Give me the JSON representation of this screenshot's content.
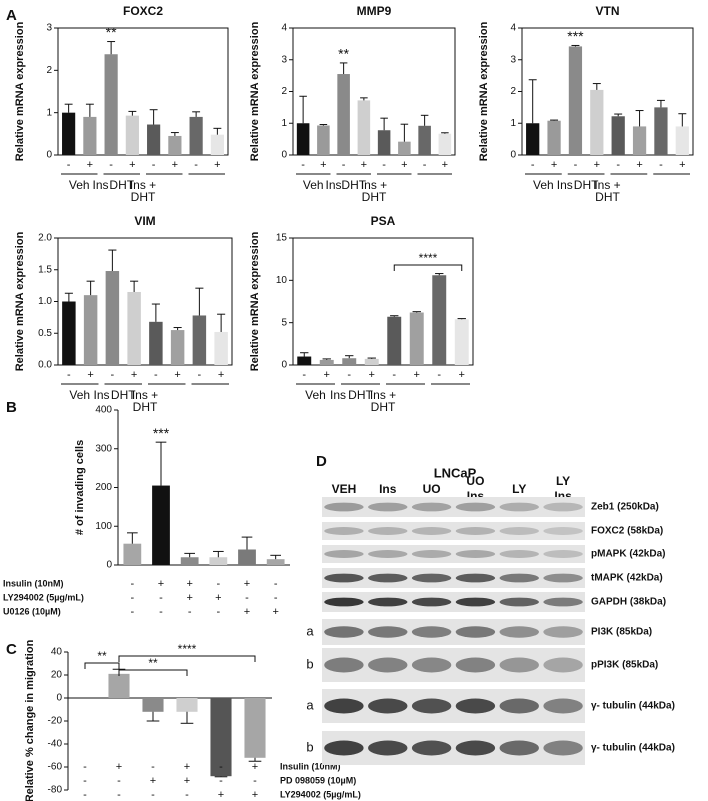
{
  "panel_labels": [
    "A",
    "B",
    "C",
    "D"
  ],
  "chart_data": [
    {
      "type": "bar",
      "title": "FOXC2",
      "ylabel": "Relative mRNA expression",
      "categories": [
        "-",
        "+",
        "-",
        "+",
        "-",
        "+",
        "-",
        "+"
      ],
      "groups": [
        [
          "Veh"
        ],
        [
          "Ins"
        ],
        [
          "DHT"
        ],
        [
          "Ins +",
          "DHT"
        ]
      ],
      "values": [
        1.0,
        0.9,
        2.38,
        0.93,
        0.72,
        0.45,
        0.9,
        0.48
      ],
      "errors": [
        0.2,
        0.3,
        0.3,
        0.1,
        0.35,
        0.08,
        0.12,
        0.15
      ],
      "colors": [
        "#111111",
        "#9a9a9a",
        "#8a8a8a",
        "#cfcfcf",
        "#5a5a5a",
        "#a0a0a0",
        "#686868",
        "#e6e6e6"
      ],
      "ylim": [
        0,
        3
      ],
      "yticks": [
        0,
        1,
        2,
        3
      ],
      "annotations": [
        "**"
      ]
    },
    {
      "type": "bar",
      "title": "MMP9",
      "ylabel": "Relative mRNA expression",
      "categories": [
        "-",
        "+",
        "-",
        "+",
        "-",
        "+",
        "-",
        "+"
      ],
      "groups": [
        [
          "Veh"
        ],
        [
          "Ins"
        ],
        [
          "DHT"
        ],
        [
          "Ins +",
          "DHT"
        ]
      ],
      "values": [
        1.0,
        0.93,
        2.55,
        1.72,
        0.78,
        0.42,
        0.92,
        0.67
      ],
      "errors": [
        0.85,
        0.03,
        0.35,
        0.08,
        0.38,
        0.55,
        0.33,
        0.03
      ],
      "colors": [
        "#111111",
        "#9a9a9a",
        "#8a8a8a",
        "#cfcfcf",
        "#5a5a5a",
        "#a0a0a0",
        "#686868",
        "#e6e6e6"
      ],
      "ylim": [
        0,
        4
      ],
      "yticks": [
        0,
        1,
        2,
        3,
        4
      ],
      "annotations": [
        "**"
      ]
    },
    {
      "type": "bar",
      "title": "VTN",
      "ylabel": "Relative mRNA expression",
      "categories": [
        "-",
        "+",
        "-",
        "+",
        "-",
        "+",
        "-",
        "+"
      ],
      "groups": [
        [
          "Veh"
        ],
        [
          "Ins"
        ],
        [
          "DHT"
        ],
        [
          "Ins +",
          "DHT"
        ]
      ],
      "values": [
        1.0,
        1.08,
        3.42,
        2.05,
        1.22,
        0.9,
        1.5,
        0.9
      ],
      "errors": [
        1.37,
        0.02,
        0.03,
        0.2,
        0.07,
        0.5,
        0.22,
        0.4
      ],
      "colors": [
        "#111111",
        "#9a9a9a",
        "#8a8a8a",
        "#cfcfcf",
        "#5a5a5a",
        "#a0a0a0",
        "#686868",
        "#e6e6e6"
      ],
      "ylim": [
        0,
        4
      ],
      "yticks": [
        0,
        1,
        2,
        3,
        4
      ],
      "annotations": [
        "***"
      ]
    },
    {
      "type": "bar",
      "title": "VIM",
      "ylabel": "Relative mRNA expression",
      "categories": [
        "-",
        "+",
        "-",
        "+",
        "-",
        "+",
        "-",
        "+"
      ],
      "groups": [
        [
          "Veh"
        ],
        [
          "Ins"
        ],
        [
          "DHT"
        ],
        [
          "Ins +",
          "DHT"
        ]
      ],
      "values": [
        1.0,
        1.1,
        1.48,
        1.15,
        0.68,
        0.55,
        0.78,
        0.52
      ],
      "errors": [
        0.13,
        0.22,
        0.33,
        0.17,
        0.28,
        0.04,
        0.43,
        0.28
      ],
      "colors": [
        "#111111",
        "#9a9a9a",
        "#8a8a8a",
        "#cfcfcf",
        "#5a5a5a",
        "#a0a0a0",
        "#686868",
        "#e6e6e6"
      ],
      "ylim": [
        0,
        2
      ],
      "yticks": [
        {
          "value": 0,
          "label": "0.0"
        },
        0.5,
        {
          "value": 1,
          "label": "1.0"
        },
        1.5,
        {
          "value": 2,
          "label": "2.0"
        }
      ],
      "annotations": []
    },
    {
      "type": "bar",
      "title": "PSA",
      "ylabel": "Relative mRNA expression",
      "categories": [
        "-",
        "+",
        "-",
        "+",
        "-",
        "+",
        "-",
        "+"
      ],
      "groups": [
        [
          "Veh"
        ],
        [
          "Ins"
        ],
        [
          "DHT"
        ],
        [
          "Ins +",
          "DHT"
        ]
      ],
      "values": [
        1.0,
        0.6,
        0.8,
        0.72,
        5.7,
        6.2,
        10.6,
        5.4
      ],
      "errors": [
        0.45,
        0.12,
        0.3,
        0.1,
        0.12,
        0.1,
        0.2,
        0.08
      ],
      "colors": [
        "#111111",
        "#9a9a9a",
        "#8a8a8a",
        "#cfcfcf",
        "#5a5a5a",
        "#a0a0a0",
        "#686868",
        "#e6e6e6"
      ],
      "ylim": [
        0,
        15
      ],
      "yticks": [
        0,
        5,
        10,
        15
      ],
      "annotations": [
        "****"
      ]
    },
    {
      "type": "bar",
      "ylabel": "# of invading cells",
      "values": [
        55,
        205,
        20,
        20,
        40,
        15
      ],
      "errors": [
        28,
        112,
        10,
        15,
        32,
        10
      ],
      "colors": [
        "#a6a6a6",
        "#111111",
        "#8a8a8a",
        "#cfcfcf",
        "#7a7a7a",
        "#a6a6a6"
      ],
      "ylim": [
        0,
        400
      ],
      "yticks": [
        0,
        100,
        200,
        300,
        400
      ],
      "annotations": [
        "***"
      ],
      "treatments": [
        {
          "label": "Insulin (10nM)",
          "marks": [
            "-",
            "+",
            "+",
            "-",
            "+",
            "-"
          ]
        },
        {
          "label": "LY294002 (5µg/mL)",
          "marks": [
            "-",
            "-",
            "+",
            "+",
            "-",
            "-"
          ]
        },
        {
          "label": "U0126 (10µM)",
          "marks": [
            "-",
            "-",
            "-",
            "-",
            "+",
            "+"
          ]
        }
      ]
    },
    {
      "type": "bar",
      "ylabel": "Relative % change in migration",
      "values": [
        null,
        21,
        -12,
        -12,
        -68,
        -52
      ],
      "errors": [
        null,
        4,
        8,
        10,
        0.5,
        3
      ],
      "colors": [
        "#a6a6a6",
        "#a6a6a6",
        "#8a8a8a",
        "#cfcfcf",
        "#555555",
        "#a6a6a6"
      ],
      "ylim": [
        -80,
        40
      ],
      "yticks": [
        -80,
        -60,
        -40,
        -20,
        0,
        20,
        40
      ],
      "annotations": [
        "**",
        "**",
        "****"
      ],
      "treatments": [
        {
          "label": "Insulin (10nM)",
          "marks": [
            "-",
            "+",
            "-",
            "+",
            "-",
            "+"
          ]
        },
        {
          "label": "PD 098059 (10µM)",
          "marks": [
            "-",
            "-",
            "+",
            "+",
            "-",
            "-"
          ]
        },
        {
          "label": "LY294002 (5µg/mL)",
          "marks": [
            "-",
            "-",
            "-",
            "-",
            "+",
            "+"
          ]
        }
      ]
    }
  ],
  "blot": {
    "title": "LNCaP",
    "lanes": [
      [
        "VEH"
      ],
      [
        "Ins"
      ],
      [
        "UO"
      ],
      [
        "UO",
        "Ins"
      ],
      [
        "LY"
      ],
      [
        "LY",
        "Ins"
      ]
    ],
    "rows": [
      "Zeb1 (250kDa)",
      "FOXC2 (58kDa)",
      "pMAPK (42kDa)",
      "tMAPK (42kDa)",
      "GAPDH (38kDa)",
      "PI3K (85kDa)",
      "pPI3K (85kDa)",
      "γ- tubulin (44kDa)",
      "γ- tubulin (44kDa)"
    ],
    "side_labels": [
      "a",
      "b",
      "a",
      "b"
    ]
  }
}
